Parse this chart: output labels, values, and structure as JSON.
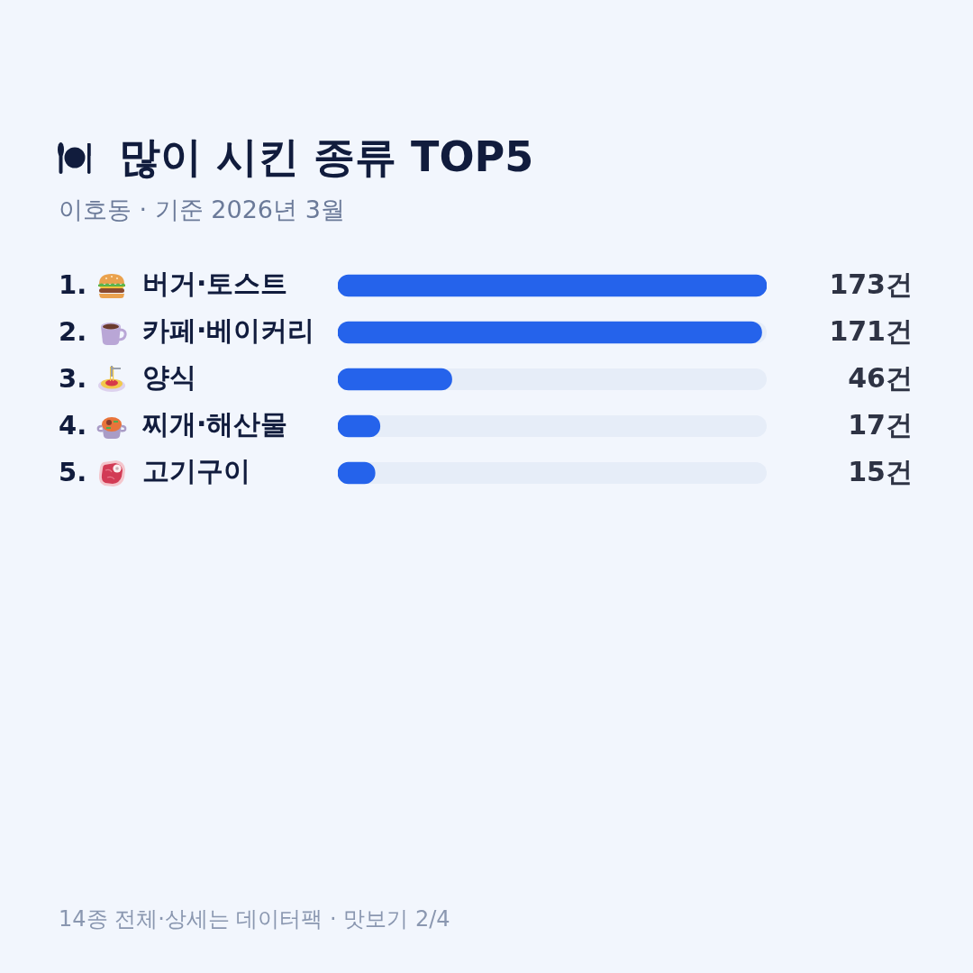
{
  "chart_data": {
    "type": "bar",
    "orientation": "horizontal",
    "title": "많이 시킨 종류 TOP5",
    "subtitle": "이호동 · 기준 2026년 3월",
    "categories": [
      "버거·토스트",
      "카페·베이커리",
      "양식",
      "찌개·해산물",
      "고기구이"
    ],
    "values": [
      173,
      171,
      46,
      17,
      15
    ],
    "value_labels": [
      "173건",
      "171건",
      "46건",
      "17건",
      "15건"
    ],
    "color": "#2563eb",
    "xlim": [
      0,
      173
    ],
    "tick_labels": "y",
    "annotations": [
      "1.",
      "2.",
      "3.",
      "4.",
      "5.",
      "14종 전체·상세는 데이터팩 · 맛보기 2/4"
    ]
  }
}
